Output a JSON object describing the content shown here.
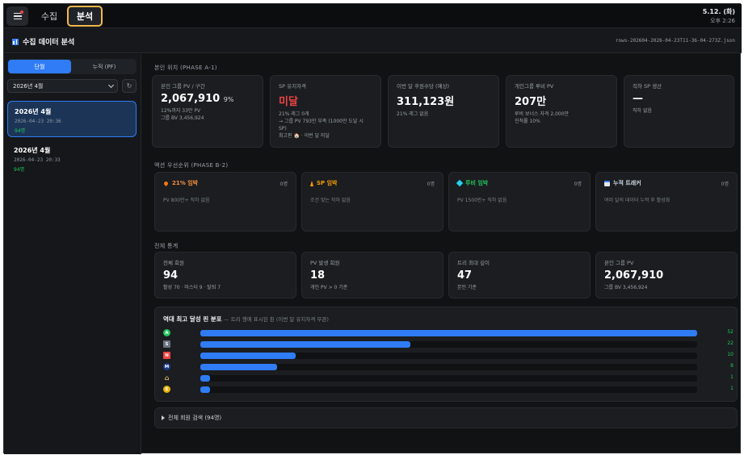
{
  "topbar": {
    "tabs": [
      "수집",
      "분석"
    ],
    "active_tab": "분석",
    "date": "5.12. (화)",
    "time": "오후 2:26"
  },
  "header": {
    "title": "수집 데이터 분석",
    "file": "rows-202604-2026-04-23T11-36-04-273Z.json"
  },
  "sidebar": {
    "segments": [
      "단월",
      "누적 (PF)"
    ],
    "active_segment": "단월",
    "month_select": "2026년 4월",
    "refresh_symbol": "↻",
    "snapshots": [
      {
        "title": "2026년 4월",
        "timestamp": "2026-04-23 20:36",
        "count": "94명",
        "active": true
      },
      {
        "title": "2026년 4월",
        "timestamp": "2026-04-23 20:33",
        "count": "94명",
        "active": false
      }
    ]
  },
  "phase_a": {
    "label": "본인 위치 (PHASE A-1)",
    "cards": [
      {
        "label": "본인 그룹 PV / 구간",
        "value": "2,067,910",
        "suffix": "9%",
        "notes": [
          "12%까지 33만 PV",
          "그룹 BV 3,456,924"
        ],
        "value_color": "white"
      },
      {
        "label": "SP 유지자격",
        "value": "미달",
        "suffix": "",
        "notes": [
          "21% 레그 0개",
          "→ 그룹 PV 793만 부족 (1000만 도달 시 SP)",
          "최고핀 🏠 · 이번 달 미달"
        ],
        "value_color": "red"
      },
      {
        "label": "이번 달 후원수당 (예상)",
        "value": "311,123원",
        "suffix": "",
        "notes": [
          "21% 레그 없음"
        ],
        "value_color": "white"
      },
      {
        "label": "개인그룹 루비 PV",
        "value": "207만",
        "suffix": "",
        "notes": [
          "루비 보너스 자격 2,000만",
          "진척률 10%"
        ],
        "value_color": "white"
      },
      {
        "label": "직하 SP 생산",
        "value": "—",
        "suffix": "",
        "notes": [
          "직하 없음"
        ],
        "value_color": "white"
      }
    ]
  },
  "phase_b": {
    "label": "액션 우선순위 (PHASE B-2)",
    "cards": [
      {
        "name": "21% 임박",
        "icon": "flame-icon",
        "count": "0명",
        "desc": "PV 800만+ 직하 없음",
        "tone": "fire"
      },
      {
        "name": "SP 임박",
        "icon": "bolt-icon",
        "count": "0명",
        "desc": "조건 맞는 직하 없음",
        "tone": "sp"
      },
      {
        "name": "루비 임박",
        "icon": "gem-icon",
        "count": "0명",
        "desc": "PV 1500만+ 직하 없음",
        "tone": "ruby"
      },
      {
        "name": "누적 트래커",
        "icon": "calendar-icon",
        "count": "0명",
        "desc": "여러 달의 데이터 누적 후 활성화",
        "tone": "acc"
      }
    ]
  },
  "stats": {
    "label": "전체 통계",
    "cards": [
      {
        "label": "전체 회원",
        "value": "94",
        "note": "활성 70 · 마스터 9 · 탈퇴 7"
      },
      {
        "label": "PV 발생 회원",
        "value": "18",
        "note": "개인 PV > 0 기준"
      },
      {
        "label": "트리 최대 깊이",
        "value": "47",
        "note": "본인 기준"
      },
      {
        "label": "본인 그룹 PV",
        "value": "2,067,910",
        "note": "그룹 BV 3,456,924"
      }
    ]
  },
  "distribution": {
    "title": "역대 최고 달성 핀 분포",
    "subtitle": "— 트리 행에 표시된 핀 (이번 달 유지자격 무관)",
    "max": 52,
    "rows": [
      {
        "badge": "A",
        "color": "#22c55e",
        "shape": "circle",
        "value": 52
      },
      {
        "badge": "S",
        "color": "#6b7280",
        "shape": "square",
        "value": 22
      },
      {
        "badge": "N",
        "color": "#ef4444",
        "shape": "square",
        "value": 10
      },
      {
        "badge": "M",
        "color": "#1e3a8a",
        "shape": "circle",
        "value": 8
      },
      {
        "badge": "⌂",
        "color": "#a16207",
        "shape": "none",
        "value": 1
      },
      {
        "badge": "E",
        "color": "#eab308",
        "shape": "circle",
        "value": 1
      }
    ]
  },
  "member_search": {
    "label": "전체 회원 검색 (94명)"
  },
  "colors": {
    "accent": "#2f7cf6",
    "positive": "#22c55e",
    "danger": "#ef4444",
    "highlight": "#f2b84b"
  }
}
